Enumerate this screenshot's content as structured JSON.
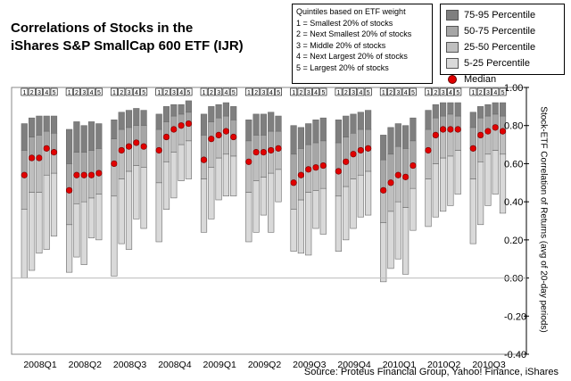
{
  "chart_data": {
    "type": "box",
    "title": [
      "Correlations of Stocks in the",
      "iShares S&P SmallCap 600 ETF (IJR)"
    ],
    "quintile_note": [
      "Quintiles based on ETF weight",
      "1 = Smallest 20% of stocks",
      "2 = Next Smallest 20% of stocks",
      "3 = Middle 20% of stocks",
      "4 = Next Largest 20% of stocks",
      "5 = Largest 20% of stocks"
    ],
    "legend": [
      {
        "label": "75-95 Percentile",
        "color": "#7f7f7f"
      },
      {
        "label": "50-75 Percentile",
        "color": "#a6a6a6"
      },
      {
        "label": "25-50 Percentile",
        "color": "#bfbfbf"
      },
      {
        "label": "5-25 Percentile",
        "color": "#d9d9d9"
      },
      {
        "label": "Median",
        "color": "#e00000",
        "marker": "dot"
      }
    ],
    "ylabel": "Stock-ETF Correlation of Returns (avg of 20-day periods)",
    "ylim": [
      -0.4,
      1.0
    ],
    "yticks": [
      "1.00",
      "0.80",
      "0.60",
      "0.40",
      "0.20",
      "0.00",
      "-0.20",
      "-0.40"
    ],
    "quintile_labels": [
      "1",
      "2",
      "3",
      "4",
      "5"
    ],
    "categories": [
      "2008Q1",
      "2008Q2",
      "2008Q3",
      "2008Q4",
      "2009Q1",
      "2009Q2",
      "2009Q3",
      "2009Q4",
      "2010Q1",
      "2010Q2",
      "2010Q3"
    ],
    "series": [
      {
        "period": "2008Q1",
        "boxes": [
          {
            "p5": 0.0,
            "p25": 0.36,
            "p50": 0.54,
            "p75": 0.67,
            "p95": 0.81
          },
          {
            "p5": 0.04,
            "p25": 0.45,
            "p50": 0.63,
            "p75": 0.74,
            "p95": 0.84
          },
          {
            "p5": 0.13,
            "p25": 0.45,
            "p50": 0.63,
            "p75": 0.75,
            "p95": 0.85
          },
          {
            "p5": 0.15,
            "p25": 0.54,
            "p50": 0.68,
            "p75": 0.77,
            "p95": 0.85
          },
          {
            "p5": 0.22,
            "p25": 0.55,
            "p50": 0.66,
            "p75": 0.76,
            "p95": 0.85
          }
        ]
      },
      {
        "period": "2008Q2",
        "boxes": [
          {
            "p5": 0.03,
            "p25": 0.28,
            "p50": 0.46,
            "p75": 0.6,
            "p95": 0.78
          },
          {
            "p5": 0.11,
            "p25": 0.39,
            "p50": 0.54,
            "p75": 0.66,
            "p95": 0.82
          },
          {
            "p5": 0.07,
            "p25": 0.4,
            "p50": 0.54,
            "p75": 0.66,
            "p95": 0.8
          },
          {
            "p5": 0.21,
            "p25": 0.42,
            "p50": 0.54,
            "p75": 0.67,
            "p95": 0.82
          },
          {
            "p5": 0.2,
            "p25": 0.44,
            "p50": 0.55,
            "p75": 0.68,
            "p95": 0.81
          }
        ]
      },
      {
        "period": "2008Q3",
        "boxes": [
          {
            "p5": 0.01,
            "p25": 0.43,
            "p50": 0.6,
            "p75": 0.73,
            "p95": 0.83
          },
          {
            "p5": 0.18,
            "p25": 0.52,
            "p50": 0.67,
            "p75": 0.78,
            "p95": 0.87
          },
          {
            "p5": 0.15,
            "p25": 0.56,
            "p50": 0.69,
            "p75": 0.79,
            "p95": 0.88
          },
          {
            "p5": 0.31,
            "p25": 0.59,
            "p50": 0.71,
            "p75": 0.8,
            "p95": 0.89
          },
          {
            "p5": 0.26,
            "p25": 0.58,
            "p50": 0.69,
            "p75": 0.8,
            "p95": 0.88
          }
        ]
      },
      {
        "period": "2008Q4",
        "boxes": [
          {
            "p5": 0.19,
            "p25": 0.5,
            "p50": 0.67,
            "p75": 0.78,
            "p95": 0.86
          },
          {
            "p5": 0.36,
            "p25": 0.61,
            "p50": 0.74,
            "p75": 0.82,
            "p95": 0.9
          },
          {
            "p5": 0.42,
            "p25": 0.66,
            "p50": 0.78,
            "p75": 0.85,
            "p95": 0.91
          },
          {
            "p5": 0.51,
            "p25": 0.7,
            "p50": 0.8,
            "p75": 0.86,
            "p95": 0.91
          },
          {
            "p5": 0.52,
            "p25": 0.72,
            "p50": 0.81,
            "p75": 0.87,
            "p95": 0.93
          }
        ]
      },
      {
        "period": "2009Q1",
        "boxes": [
          {
            "p5": 0.24,
            "p25": 0.52,
            "p50": 0.62,
            "p75": 0.75,
            "p95": 0.86
          },
          {
            "p5": 0.31,
            "p25": 0.58,
            "p50": 0.73,
            "p75": 0.82,
            "p95": 0.9
          },
          {
            "p5": 0.41,
            "p25": 0.63,
            "p50": 0.75,
            "p75": 0.84,
            "p95": 0.91
          },
          {
            "p5": 0.43,
            "p25": 0.65,
            "p50": 0.77,
            "p75": 0.85,
            "p95": 0.92
          },
          {
            "p5": 0.43,
            "p25": 0.64,
            "p50": 0.74,
            "p75": 0.83,
            "p95": 0.9
          }
        ]
      },
      {
        "period": "2009Q2",
        "boxes": [
          {
            "p5": 0.19,
            "p25": 0.45,
            "p50": 0.61,
            "p75": 0.72,
            "p95": 0.83
          },
          {
            "p5": 0.24,
            "p25": 0.51,
            "p50": 0.66,
            "p75": 0.75,
            "p95": 0.86
          },
          {
            "p5": 0.33,
            "p25": 0.53,
            "p50": 0.66,
            "p75": 0.75,
            "p95": 0.86
          },
          {
            "p5": 0.24,
            "p25": 0.55,
            "p50": 0.67,
            "p75": 0.77,
            "p95": 0.87
          },
          {
            "p5": 0.4,
            "p25": 0.57,
            "p50": 0.68,
            "p75": 0.77,
            "p95": 0.85
          }
        ]
      },
      {
        "period": "2009Q3",
        "boxes": [
          {
            "p5": 0.14,
            "p25": 0.36,
            "p50": 0.5,
            "p75": 0.65,
            "p95": 0.8
          },
          {
            "p5": 0.13,
            "p25": 0.41,
            "p50": 0.54,
            "p75": 0.68,
            "p95": 0.79
          },
          {
            "p5": 0.12,
            "p25": 0.45,
            "p50": 0.57,
            "p75": 0.7,
            "p95": 0.81
          },
          {
            "p5": 0.26,
            "p25": 0.46,
            "p50": 0.58,
            "p75": 0.71,
            "p95": 0.83
          },
          {
            "p5": 0.23,
            "p25": 0.47,
            "p50": 0.59,
            "p75": 0.72,
            "p95": 0.84
          }
        ]
      },
      {
        "period": "2009Q4",
        "boxes": [
          {
            "p5": 0.14,
            "p25": 0.43,
            "p50": 0.56,
            "p75": 0.71,
            "p95": 0.83
          },
          {
            "p5": 0.2,
            "p25": 0.48,
            "p50": 0.61,
            "p75": 0.74,
            "p95": 0.85
          },
          {
            "p5": 0.26,
            "p25": 0.52,
            "p50": 0.65,
            "p75": 0.76,
            "p95": 0.86
          },
          {
            "p5": 0.32,
            "p25": 0.54,
            "p50": 0.67,
            "p75": 0.78,
            "p95": 0.87
          },
          {
            "p5": 0.33,
            "p25": 0.56,
            "p50": 0.68,
            "p75": 0.78,
            "p95": 0.88
          }
        ]
      },
      {
        "period": "2010Q1",
        "boxes": [
          {
            "p5": -0.02,
            "p25": 0.29,
            "p50": 0.46,
            "p75": 0.62,
            "p95": 0.75
          },
          {
            "p5": 0.05,
            "p25": 0.35,
            "p50": 0.5,
            "p75": 0.65,
            "p95": 0.79
          },
          {
            "p5": 0.1,
            "p25": 0.4,
            "p50": 0.54,
            "p75": 0.69,
            "p95": 0.81
          },
          {
            "p5": 0.02,
            "p25": 0.37,
            "p50": 0.53,
            "p75": 0.68,
            "p95": 0.8
          },
          {
            "p5": 0.25,
            "p25": 0.47,
            "p50": 0.59,
            "p75": 0.72,
            "p95": 0.84
          }
        ]
      },
      {
        "period": "2010Q2",
        "boxes": [
          {
            "p5": 0.27,
            "p25": 0.52,
            "p50": 0.67,
            "p75": 0.78,
            "p95": 0.88
          },
          {
            "p5": 0.32,
            "p25": 0.6,
            "p50": 0.75,
            "p75": 0.84,
            "p95": 0.91
          },
          {
            "p5": 0.35,
            "p25": 0.63,
            "p50": 0.78,
            "p75": 0.85,
            "p95": 0.92
          },
          {
            "p5": 0.38,
            "p25": 0.64,
            "p50": 0.78,
            "p75": 0.86,
            "p95": 0.92
          },
          {
            "p5": 0.44,
            "p25": 0.67,
            "p50": 0.78,
            "p75": 0.85,
            "p95": 0.92
          }
        ]
      },
      {
        "period": "2010Q3",
        "boxes": [
          {
            "p5": 0.18,
            "p25": 0.52,
            "p50": 0.68,
            "p75": 0.79,
            "p95": 0.87
          },
          {
            "p5": 0.28,
            "p25": 0.61,
            "p50": 0.75,
            "p75": 0.84,
            "p95": 0.9
          },
          {
            "p5": 0.38,
            "p25": 0.65,
            "p50": 0.77,
            "p75": 0.85,
            "p95": 0.91
          },
          {
            "p5": 0.44,
            "p25": 0.67,
            "p50": 0.79,
            "p75": 0.86,
            "p95": 0.92
          },
          {
            "p5": 0.34,
            "p25": 0.65,
            "p50": 0.77,
            "p75": 0.85,
            "p95": 0.92
          }
        ]
      }
    ],
    "grid": false,
    "legend_position": "top-right"
  },
  "source": "Source: Proteus Financial Group, Yahoo! Finance, iShares"
}
